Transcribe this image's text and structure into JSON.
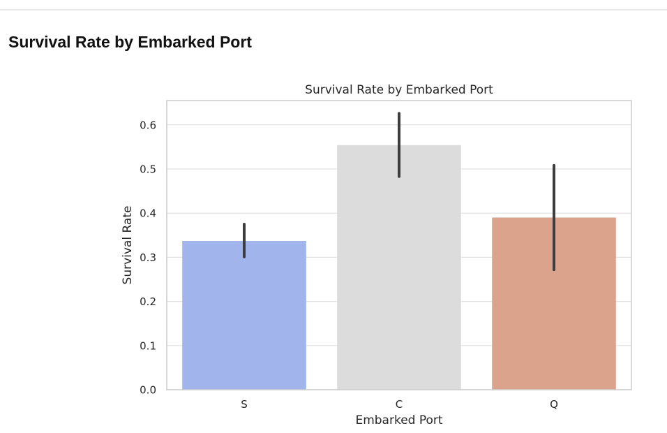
{
  "page": {
    "heading": "Survival Rate by Embarked Port"
  },
  "chart_data": {
    "type": "bar",
    "title": "Survival Rate by Embarked Port",
    "xlabel": "Embarked Port",
    "ylabel": "Survival Rate",
    "categories": [
      "S",
      "C",
      "Q"
    ],
    "values": [
      0.337,
      0.554,
      0.39
    ],
    "error_low": [
      0.301,
      0.483,
      0.272
    ],
    "error_high": [
      0.375,
      0.626,
      0.508
    ],
    "colors": [
      "#a1b4ec",
      "#dcdcdc",
      "#dba28c"
    ],
    "ylim": [
      0,
      0.655
    ],
    "yticks": [
      0.0,
      0.1,
      0.2,
      0.3,
      0.4,
      0.5,
      0.6
    ],
    "ytick_labels": [
      "0.0",
      "0.1",
      "0.2",
      "0.3",
      "0.4",
      "0.5",
      "0.6"
    ],
    "grid": true,
    "legend": "none"
  }
}
